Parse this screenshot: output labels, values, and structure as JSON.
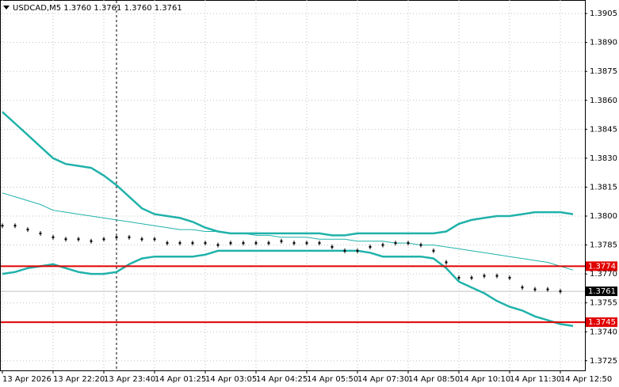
{
  "chart_data": {
    "type": "line",
    "title": "USDCAD,M5  1.3760 1.3761 1.3760 1.3761",
    "categories": [
      "13 Apr 2026",
      null,
      null,
      null,
      "13 Apr 22:20",
      null,
      null,
      null,
      "13 Apr 23:40",
      null,
      null,
      null,
      "14 Apr 01:25",
      null,
      null,
      null,
      "14 Apr 03:05",
      null,
      null,
      null,
      "14 Apr 04:25",
      null,
      null,
      null,
      "14 Apr 05:50",
      null,
      null,
      null,
      "14 Apr 07:30",
      null,
      null,
      null,
      "14 Apr 08:50",
      null,
      null,
      null,
      "14 Apr 10:10",
      null,
      null,
      null,
      "14 Apr 11:30",
      null,
      null,
      null,
      "14 Apr 12:50",
      null
    ],
    "ylim": [
      1.372,
      1.3912
    ],
    "yticks": [
      1.3905,
      {
        "value": 1.389,
        "label": "1.3890"
      },
      1.3875,
      {
        "value": 1.386,
        "label": "1.3860"
      },
      1.3845,
      {
        "value": 1.383,
        "label": "1.3830"
      },
      1.3815,
      {
        "value": 1.38,
        "label": "1.3800"
      },
      1.3785,
      {
        "value": 1.377,
        "label": "1.3770"
      },
      1.3755,
      {
        "value": 1.374,
        "label": "1.3740"
      },
      1.3725
    ],
    "grid": true,
    "levels": [
      1.3774,
      1.3745
    ],
    "level_color": "#e00000",
    "current_price": 1.3761,
    "series": [
      {
        "color": "#20b2aa",
        "values": [
          1.3854,
          1.3848,
          1.3842,
          1.3836,
          1.383,
          1.3827,
          1.3826,
          1.3825,
          1.3821,
          1.3816,
          1.381,
          1.3804,
          1.3801,
          1.38,
          1.3799,
          1.3797,
          1.3794,
          1.3792,
          1.3791,
          1.3791,
          1.3791,
          1.3791,
          1.3791,
          1.3791,
          1.3791,
          1.3791,
          1.379,
          1.379,
          1.3791,
          1.3791,
          1.3791,
          1.3791,
          1.3791,
          1.3791,
          1.3791,
          1.3792,
          1.3796,
          1.3798,
          1.3799,
          1.38,
          1.38,
          1.3801,
          1.3802,
          1.3802,
          1.3802,
          1.3801
        ]
      },
      {
        "color": "#20b2aa",
        "values": [
          1.3812,
          1.381,
          1.3808,
          1.3806,
          1.3803,
          1.3802,
          1.3801,
          1.38,
          1.3799,
          1.3798,
          1.3797,
          1.3796,
          1.3795,
          1.3794,
          1.3793,
          1.3793,
          1.3792,
          1.3792,
          1.3791,
          1.3791,
          1.379,
          1.379,
          1.3789,
          1.3789,
          1.3789,
          1.3788,
          1.3788,
          1.3788,
          1.3787,
          1.3787,
          1.3787,
          1.3786,
          1.3786,
          1.3785,
          1.3785,
          1.3784,
          1.3783,
          1.3782,
          1.3781,
          1.378,
          1.3779,
          1.3778,
          1.3777,
          1.3776,
          1.3774,
          1.3772
        ]
      },
      {
        "color": "#20b2aa",
        "values": [
          1.377,
          1.3771,
          1.3773,
          1.3774,
          1.3775,
          1.3773,
          1.3771,
          1.377,
          1.377,
          1.3771,
          1.3775,
          1.3778,
          1.3779,
          1.3779,
          1.3779,
          1.3779,
          1.378,
          1.3782,
          1.3782,
          1.3782,
          1.3782,
          1.3782,
          1.3782,
          1.3782,
          1.3782,
          1.3782,
          1.3782,
          1.3782,
          1.3782,
          1.3781,
          1.3779,
          1.3779,
          1.3779,
          1.3779,
          1.3778,
          1.3773,
          1.3766,
          1.3763,
          1.376,
          1.3756,
          1.3753,
          1.3751,
          1.3748,
          1.3746,
          1.3744,
          1.3743
        ]
      },
      {
        "color": "#000000",
        "values": [
          1.3795,
          1.3795,
          1.3793,
          1.3791,
          1.3789,
          1.3788,
          1.3788,
          1.3787,
          1.3788,
          1.3789,
          1.3789,
          1.3788,
          1.3788,
          1.3786,
          1.3786,
          1.3786,
          1.3786,
          1.3785,
          1.3786,
          1.3786,
          1.3786,
          1.3786,
          1.3787,
          1.3786,
          1.3786,
          1.3786,
          1.3784,
          1.3782,
          1.3782,
          1.3784,
          1.3785,
          1.3786,
          1.3786,
          1.3785,
          1.3782,
          1.3776,
          1.3768,
          1.3768,
          1.3769,
          1.3769,
          1.3768,
          1.3763,
          1.3762,
          1.3762,
          1.3761,
          null
        ]
      }
    ]
  }
}
